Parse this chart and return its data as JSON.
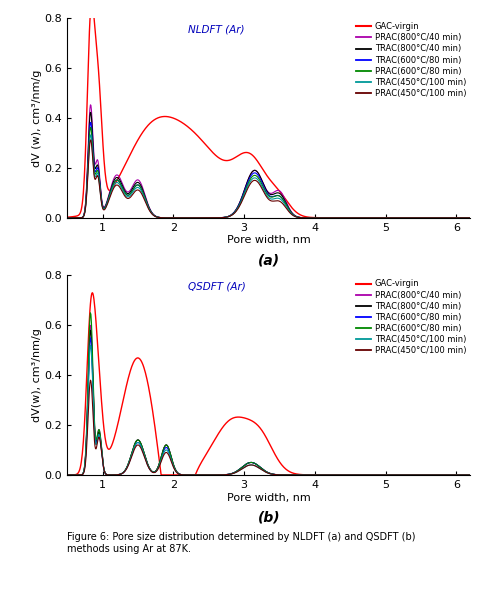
{
  "title_a": "NLDFT (Ar)",
  "title_b": "QSDFT (Ar)",
  "xlabel": "Pore width, nm",
  "ylabel_a": "dV (w), cm³/nm/g",
  "ylabel_b": "dV(w), cm³/nm/g",
  "label_a": "(a)",
  "label_b": "(b)",
  "caption": "Figure 6: Pore size distribution determined by NLDFT (a) and QSDFT (b)\nmethods using Ar at 87K.",
  "xlim": [
    0.5,
    6.2
  ],
  "ylim": [
    0.0,
    0.8
  ],
  "xticks": [
    1,
    2,
    3,
    4,
    5,
    6
  ],
  "yticks": [
    0.0,
    0.2,
    0.4,
    0.6,
    0.8
  ],
  "legend_labels": [
    "GAC-virgin",
    "PRAC(800°C/40 min)",
    "TRAC(800°C/40 min)",
    "TRAC(600°C/80 min)",
    "PRAC(600°C/80 min)",
    "TRAC(450°C/100 min)",
    "PRAC(450°C/100 min)"
  ],
  "colors": [
    "#FF0000",
    "#AA00AA",
    "#000000",
    "#0000FF",
    "#008800",
    "#009999",
    "#660000"
  ],
  "linewidths": [
    1.0,
    0.8,
    0.8,
    0.8,
    0.8,
    0.8,
    0.8
  ],
  "background_color": "#ffffff"
}
